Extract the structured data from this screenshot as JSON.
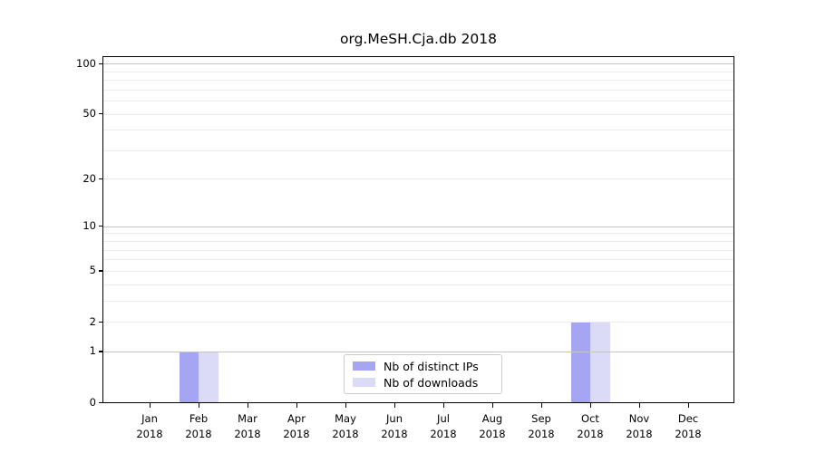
{
  "chart_data": {
    "type": "bar",
    "title": "org.MeSH.Cja.db 2018",
    "categories": [
      {
        "month": "Jan",
        "year": "2018"
      },
      {
        "month": "Feb",
        "year": "2018"
      },
      {
        "month": "Mar",
        "year": "2018"
      },
      {
        "month": "Apr",
        "year": "2018"
      },
      {
        "month": "May",
        "year": "2018"
      },
      {
        "month": "Jun",
        "year": "2018"
      },
      {
        "month": "Jul",
        "year": "2018"
      },
      {
        "month": "Aug",
        "year": "2018"
      },
      {
        "month": "Sep",
        "year": "2018"
      },
      {
        "month": "Oct",
        "year": "2018"
      },
      {
        "month": "Nov",
        "year": "2018"
      },
      {
        "month": "Dec",
        "year": "2018"
      }
    ],
    "series": [
      {
        "name": "Nb of distinct IPs",
        "color": "#a5a5f3",
        "values": [
          0,
          1,
          0,
          0,
          0,
          0,
          0,
          0,
          0,
          2,
          0,
          0
        ]
      },
      {
        "name": "Nb of downloads",
        "color": "#dbdbf8",
        "values": [
          0,
          1,
          0,
          0,
          0,
          0,
          0,
          0,
          0,
          2,
          0,
          0
        ]
      }
    ],
    "y_scale": "log1p",
    "y_tick_values": [
      0,
      1,
      2,
      5,
      10,
      20,
      50,
      100
    ],
    "y_tick_labels": [
      "0",
      "1",
      "2",
      "5",
      "10",
      "20",
      "50",
      "100"
    ],
    "y_gridlines_decade": [
      1,
      10,
      100
    ],
    "y_gridlines_light": [
      2,
      3,
      4,
      5,
      6,
      7,
      8,
      9,
      20,
      30,
      40,
      50,
      60,
      70,
      80,
      90
    ],
    "ylim": [
      0,
      110
    ],
    "grid": true,
    "legend_position": "lower center inside plot",
    "xlabel": "",
    "ylabel": "",
    "colors": {
      "grid_decade": "#c3c3c3",
      "grid_light": "#ebebeb",
      "axis": "#000000",
      "legend_border": "#cccccc",
      "background": "#ffffff"
    }
  }
}
